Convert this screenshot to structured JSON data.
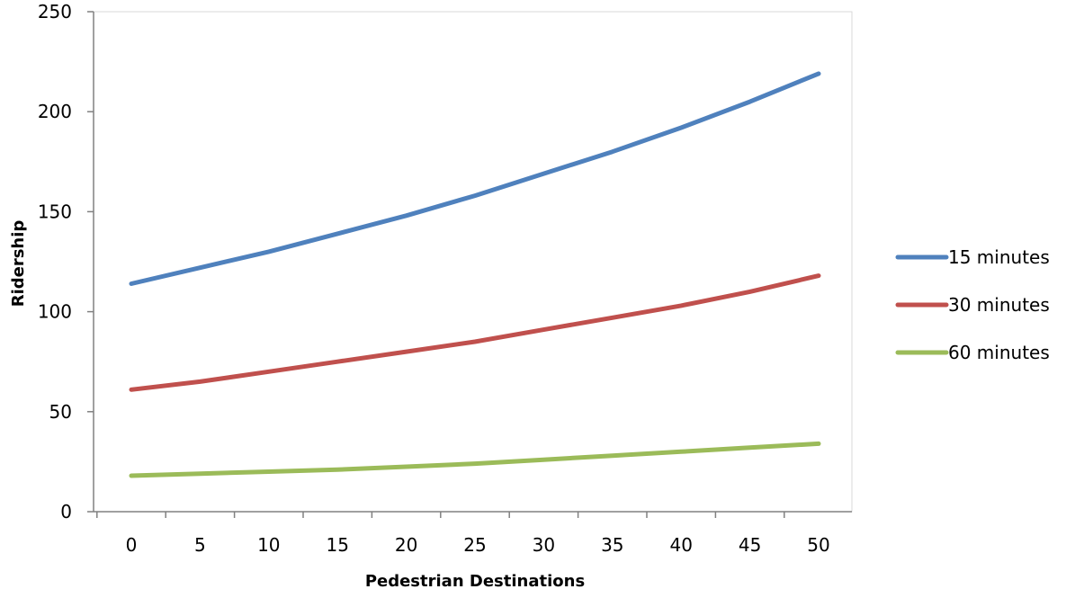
{
  "chart_data": {
    "type": "line",
    "title": "",
    "xlabel": "Pedestrian Destinations",
    "ylabel": "Ridership",
    "x": [
      0,
      5,
      10,
      15,
      20,
      25,
      30,
      35,
      40,
      45,
      50
    ],
    "x_tick_labels": [
      "0",
      "5",
      "10",
      "15",
      "20",
      "25",
      "30",
      "35",
      "40",
      "45",
      "50"
    ],
    "ylim": [
      0,
      250
    ],
    "y_ticks": [
      0,
      50,
      100,
      150,
      200,
      250
    ],
    "y_tick_labels": [
      "0",
      "50",
      "100",
      "150",
      "200",
      "250"
    ],
    "grid": false,
    "legend_position": "right",
    "series": [
      {
        "name": "15 minutes",
        "color": "#4f81bd",
        "values": [
          114,
          122,
          130,
          139,
          148,
          158,
          169,
          180,
          192,
          205,
          219
        ]
      },
      {
        "name": "30 minutes",
        "color": "#c0504d",
        "values": [
          61,
          65,
          70,
          75,
          80,
          85,
          91,
          97,
          103,
          110,
          118
        ]
      },
      {
        "name": "60 minutes",
        "color": "#9bbb59",
        "values": [
          18,
          19,
          20,
          21,
          22.5,
          24,
          26,
          28,
          30,
          32,
          34
        ]
      }
    ]
  }
}
